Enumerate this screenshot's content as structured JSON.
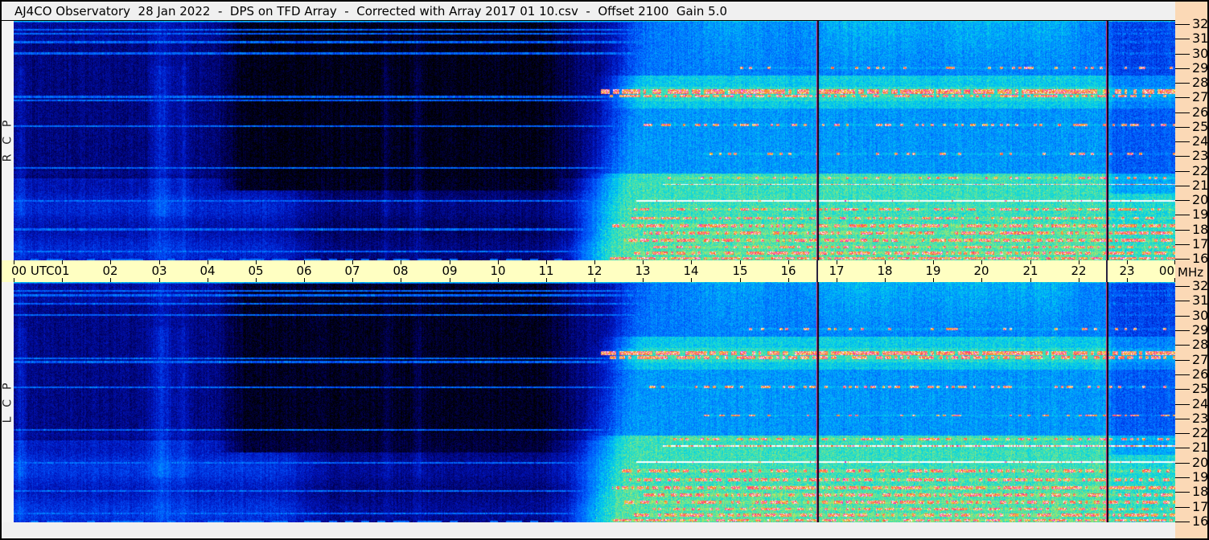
{
  "window": {
    "title": "AJ4CO Observatory  28 Jan 2022  -  DPS on TFD Array  -  Corrected with Array 2017 01 10.csv  -  Offset 2100  Gain 5.0"
  },
  "colors": {
    "title_bg": "#f0f0f0",
    "time_band_bg": "#ffffc2",
    "freq_scale_bg": "#fbd9b6",
    "margin_bg": "#f3f3f3",
    "footer_bg": "#f0f0f0",
    "border": "#000000",
    "axis_text": "#000000"
  },
  "chart_data": {
    "type": "heatmap",
    "title": "AJ4CO Observatory  28 Jan 2022  -  DPS on TFD Array  -  Corrected with Array 2017 01 10.csv  -  Offset 2100  Gain 5.0",
    "observatory": "AJ4CO Observatory",
    "date": "28 Jan 2022",
    "instrument": "DPS on TFD Array",
    "correction_file": "Array 2017 01 10.csv",
    "offset": "2100",
    "gain": "5.0",
    "x_axis": {
      "label_first": "00 UTC",
      "hours": [
        "00",
        "01",
        "02",
        "03",
        "04",
        "05",
        "06",
        "07",
        "08",
        "09",
        "10",
        "11",
        "12",
        "13",
        "14",
        "15",
        "16",
        "17",
        "18",
        "19",
        "20",
        "21",
        "22",
        "23",
        "00"
      ],
      "unit": "MHz",
      "range_utc": [
        0,
        24
      ]
    },
    "y_axis": {
      "unit": "MHz",
      "range_mhz": [
        16,
        32
      ],
      "ticks": [
        "32",
        "31",
        "30",
        "29",
        "28",
        "27",
        "26",
        "25",
        "24",
        "23",
        "22",
        "21",
        "20",
        "19",
        "18",
        "17",
        "16"
      ]
    },
    "panels": [
      {
        "id": "RCP",
        "label": "R  C  P",
        "seed": 11,
        "night_boost": 0
      },
      {
        "id": "LCP",
        "label": "L  C  P",
        "seed": 47,
        "night_boost": 0.03
      }
    ],
    "markers_utc": [
      16.59,
      22.57
    ],
    "features": {
      "day_start_utc": 11.25,
      "day_ramp_hours": 1.3,
      "quiet_zone": {
        "t0": 4.0,
        "t1": 11.9,
        "f_min": 20.7
      },
      "evening_dim_utc": 22.57,
      "night_levels": {
        "low_f": 0.23,
        "mid_f": 0.14,
        "top_f": 0.17
      },
      "day_profile": [
        {
          "f_max": 21.8,
          "v": 0.63
        },
        {
          "f_max": 26.2,
          "v": 0.46
        },
        {
          "f_max": 28.4,
          "v": 0.55
        },
        {
          "f_max": 32.1,
          "v": 0.41
        }
      ],
      "night_vertical_bands": [
        {
          "t": 0.15,
          "w": 0.1,
          "a": 0.07
        },
        {
          "t": 3.05,
          "w": 0.22,
          "a": 0.1
        },
        {
          "t": 3.5,
          "w": 0.12,
          "a": 0.06
        },
        {
          "t": 7.7,
          "w": 0.1,
          "a": 0.05
        },
        {
          "t": 8.35,
          "w": 0.1,
          "a": 0.05
        }
      ],
      "plumes": [
        {
          "t": 14.8,
          "w": 0.8,
          "a": 0.07
        },
        {
          "t": 17.6,
          "w": 1.3,
          "a": 0.11
        },
        {
          "t": 19.9,
          "w": 1.0,
          "a": 0.1
        },
        {
          "t": 21.4,
          "w": 0.7,
          "a": 0.09
        }
      ],
      "blue_lines_mhz": [
        31.45,
        31.15,
        30.6,
        29.85,
        26.95,
        26.7,
        25.0,
        22.2,
        20.0,
        18.1,
        16.6
      ],
      "white_lines": [
        {
          "mhz": 20.02,
          "start_utc": 12.85,
          "solid": 1.0,
          "colorful_fraction": 0.07
        },
        {
          "mhz": 21.1,
          "start_utc": 13.4,
          "solid": 1.0,
          "colorful_fraction": 0.45
        }
      ],
      "rfi_bands": [
        {
          "mhz": 27.3,
          "halfwidth": 0.14,
          "start_utc": 12.05,
          "density": 0.8
        },
        {
          "mhz": 27.0,
          "halfwidth": 0.1,
          "start_utc": 12.3,
          "density": 0.65
        },
        {
          "mhz": 25.05,
          "halfwidth": 0.08,
          "start_utc": 13.0,
          "density": 0.35
        },
        {
          "mhz": 23.15,
          "halfwidth": 0.07,
          "start_utc": 14.2,
          "density": 0.28
        },
        {
          "mhz": 28.9,
          "halfwidth": 0.07,
          "start_utc": 15.0,
          "density": 0.18
        },
        {
          "mhz": 21.55,
          "halfwidth": 0.08,
          "start_utc": 13.5,
          "density": 0.3
        },
        {
          "mhz": 19.45,
          "halfwidth": 0.09,
          "start_utc": 12.5,
          "density": 0.5
        },
        {
          "mhz": 18.85,
          "halfwidth": 0.1,
          "start_utc": 12.7,
          "density": 0.55
        },
        {
          "mhz": 18.35,
          "halfwidth": 0.11,
          "start_utc": 12.35,
          "density": 0.6
        },
        {
          "mhz": 17.85,
          "halfwidth": 0.12,
          "start_utc": 13.0,
          "density": 0.6
        },
        {
          "mhz": 17.35,
          "halfwidth": 0.1,
          "start_utc": 12.6,
          "density": 0.55
        },
        {
          "mhz": 16.9,
          "halfwidth": 0.09,
          "start_utc": 13.2,
          "density": 0.5
        },
        {
          "mhz": 16.5,
          "halfwidth": 0.1,
          "start_utc": 12.8,
          "density": 0.6
        },
        {
          "mhz": 16.15,
          "halfwidth": 0.08,
          "start_utc": 12.3,
          "density": 0.7
        }
      ]
    }
  }
}
